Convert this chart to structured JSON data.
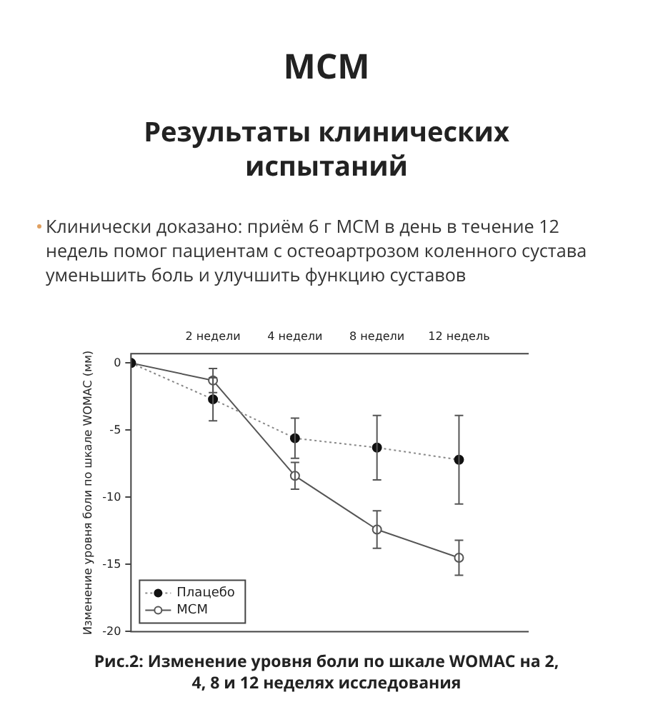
{
  "chart_data": {
    "type": "line",
    "title": "МСМ",
    "subtitle": "Результаты клинических испытаний",
    "annotations": [
      "Клинически доказано: приём 6 г МСМ в день в течение 12 недель помог пациентам с остеоартрозом коленного сустава уменьшить боль и улучшить функцию суставов",
      "Рис.2: Изменение уровня боли по шкале WOMAC на 2, 4, 8 и 12 неделях исследования"
    ],
    "ylabel": "Изменение уровня боли по шкале WOMAC (мм)",
    "categories": [
      null,
      "2 недели",
      "4 недели",
      "8 недели",
      "12 недель"
    ],
    "series": [
      {
        "name": "Плацебо",
        "color": "#111111",
        "line_style": "dotted",
        "values": [
          0,
          -2.7,
          -5.6,
          -6.3,
          -7.2
        ],
        "errors": [
          null,
          1.6,
          1.5,
          2.4,
          3.3
        ]
      },
      {
        "name": "МСМ",
        "color": "#555555",
        "line_style": "solid",
        "values": [
          0,
          -1.3,
          -8.4,
          -12.4,
          -14.5
        ],
        "errors": [
          null,
          0.9,
          1.0,
          1.4,
          1.3
        ]
      }
    ],
    "ylim": [
      -20,
      0.7
    ],
    "yticks": [
      0,
      -5,
      -10,
      -15,
      -20
    ],
    "grid": false,
    "legend": "bottom left",
    "marker": "circle"
  }
}
